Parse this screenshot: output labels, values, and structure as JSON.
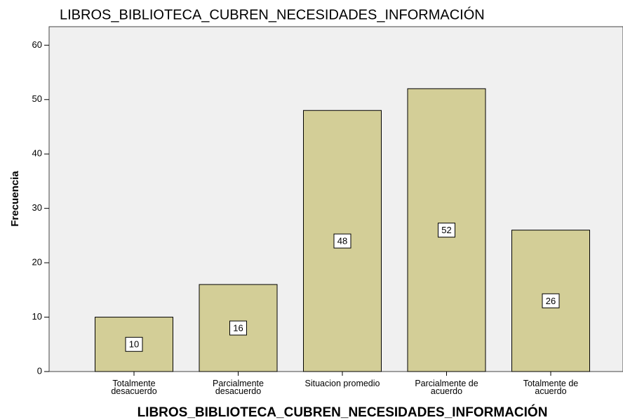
{
  "chart_data": {
    "type": "bar",
    "title": "LIBROS_BIBLIOTECA_CUBREN_NECESIDADES_INFORMACIÓN",
    "x_label": "LIBROS_BIBLIOTECA_CUBREN_NECESIDADES_INFORMACIÓN",
    "y_label": "Frecuencia",
    "categories": [
      "Totalmente desacuerdo",
      "Parcialmente desacuerdo",
      "Situacion promedio",
      "Parcialmente de acuerdo",
      "Totalmente de acuerdo"
    ],
    "values": [
      10,
      16,
      48,
      52,
      26
    ],
    "color": "#d3ce97",
    "ylim": [
      0,
      63.4
    ],
    "yticks": [
      0,
      10,
      20,
      30,
      40,
      50,
      60
    ],
    "grid": false
  }
}
